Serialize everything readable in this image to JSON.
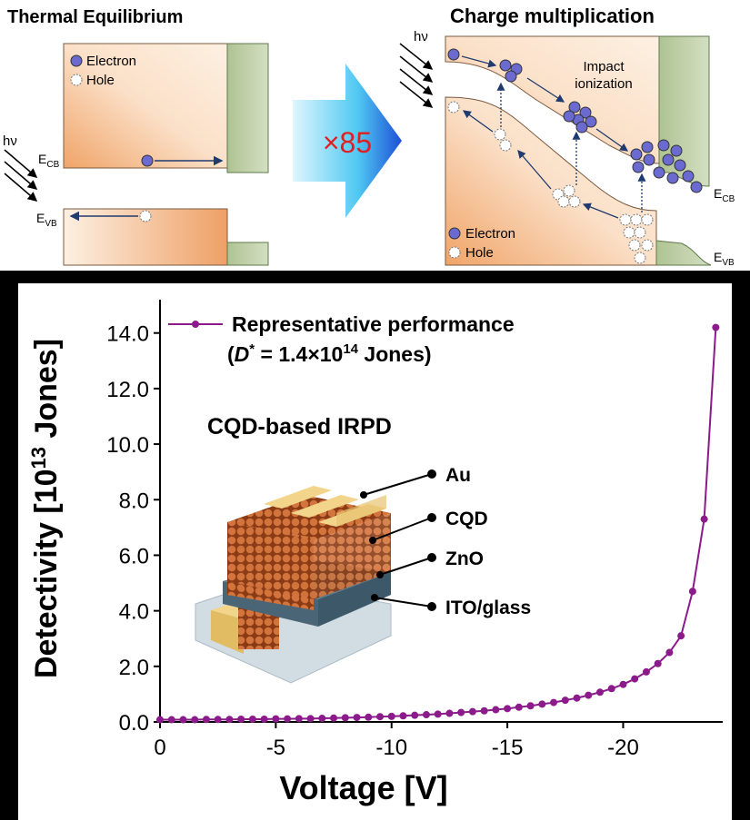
{
  "diagram": {
    "left": {
      "title": "Thermal Equilibrium",
      "legend_electron": "Electron",
      "legend_hole": "Hole",
      "light": "hν",
      "ecb": [
        "E",
        "CB"
      ],
      "evb": [
        "E",
        "VB"
      ]
    },
    "factor": "×85",
    "right": {
      "title": "Charge multiplication",
      "light": "hν",
      "impact": [
        "Impact",
        "ionization"
      ],
      "legend_electron": "Electron",
      "legend_hole": "Hole",
      "ecb": [
        "E",
        "CB"
      ],
      "evb": [
        "E",
        "VB"
      ]
    }
  },
  "chart_data": {
    "type": "line",
    "y_label": [
      "Detectivity [10",
      "13",
      " Jones]"
    ],
    "x_label": "Voltage [V]",
    "legend": [
      "(",
      "D",
      "*",
      " = 1.4×10",
      "14",
      "  Jones)"
    ],
    "inset": {
      "title": "CQD-based IRPD",
      "layers": [
        "Au",
        "CQD",
        "ZnO",
        "ITO/glass"
      ]
    },
    "x": [
      0,
      -0.5,
      -1,
      -1.5,
      -2,
      -2.5,
      -3,
      -3.5,
      -4,
      -4.5,
      -5,
      -5.5,
      -6,
      -6.5,
      -7,
      -7.5,
      -8,
      -8.5,
      -9,
      -9.5,
      -10,
      -10.5,
      -11,
      -11.5,
      -12,
      -12.5,
      -13,
      -13.5,
      -14,
      -14.5,
      -15,
      -15.5,
      -16,
      -16.5,
      -17,
      -17.5,
      -18,
      -18.5,
      -19,
      -19.5,
      -20,
      -20.5,
      -21,
      -21.5,
      -22,
      -22.5,
      -23,
      -23.5,
      -24
    ],
    "series": [
      {
        "name": "Representative performance",
        "color": "#8b1a8b",
        "values": [
          0.08,
          0.08,
          0.08,
          0.08,
          0.09,
          0.09,
          0.09,
          0.1,
          0.1,
          0.1,
          0.11,
          0.11,
          0.12,
          0.12,
          0.13,
          0.14,
          0.15,
          0.16,
          0.17,
          0.19,
          0.2,
          0.22,
          0.24,
          0.26,
          0.28,
          0.31,
          0.34,
          0.37,
          0.4,
          0.44,
          0.48,
          0.53,
          0.58,
          0.64,
          0.7,
          0.78,
          0.86,
          0.96,
          1.07,
          1.2,
          1.35,
          1.55,
          1.8,
          2.1,
          2.5,
          3.1,
          4.7,
          7.3,
          14.2
        ]
      }
    ],
    "xlim": [
      0,
      -24.3
    ],
    "xticks": [
      0,
      -5,
      -10,
      -15,
      -20
    ],
    "ylim": [
      0,
      15.2
    ],
    "yticks": [
      {
        "value": 0,
        "label": "0.0"
      },
      {
        "value": 2,
        "label": "2.0"
      },
      {
        "value": 4,
        "label": "4.0"
      },
      {
        "value": 6,
        "label": "6.0"
      },
      {
        "value": 8,
        "label": "8.0"
      },
      {
        "value": 10,
        "label": "10.0"
      },
      {
        "value": 12,
        "label": "12.0"
      },
      {
        "value": 14,
        "label": "14.0"
      }
    ]
  }
}
